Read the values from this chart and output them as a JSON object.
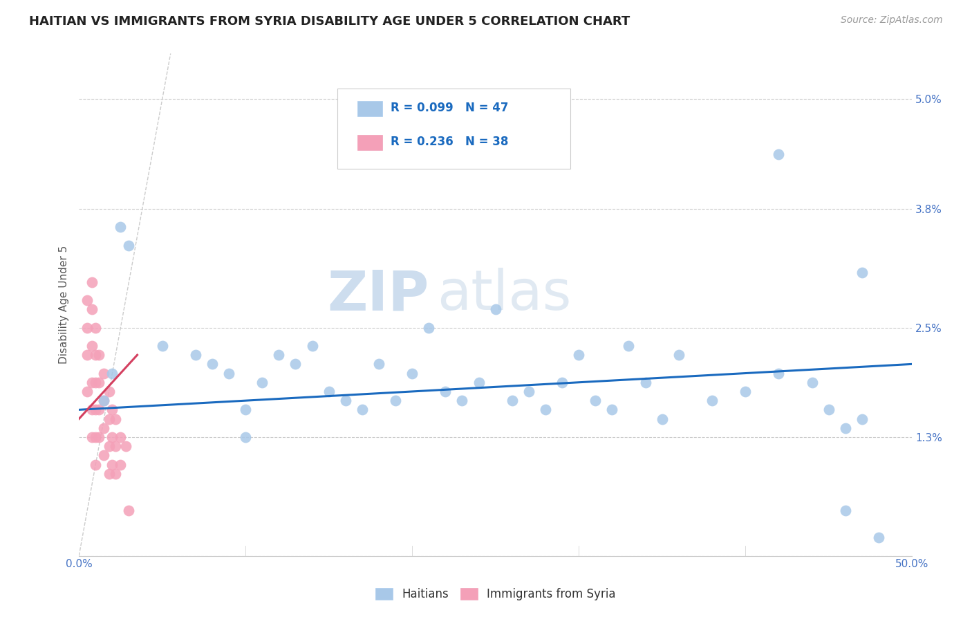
{
  "title": "HAITIAN VS IMMIGRANTS FROM SYRIA DISABILITY AGE UNDER 5 CORRELATION CHART",
  "source": "Source: ZipAtlas.com",
  "ylabel": "Disability Age Under 5",
  "xlim": [
    0.0,
    0.5
  ],
  "ylim": [
    0.0,
    0.055
  ],
  "xticks": [
    0.0,
    0.5
  ],
  "xticklabels": [
    "0.0%",
    "50.0%"
  ],
  "yticks": [
    0.0,
    0.013,
    0.025,
    0.038,
    0.05
  ],
  "yticklabels": [
    "",
    "1.3%",
    "2.5%",
    "3.8%",
    "5.0%"
  ],
  "color_blue": "#a8c8e8",
  "color_pink": "#f4a0b8",
  "color_blue_line": "#1a6abf",
  "color_pink_line": "#d44060",
  "color_diagonal": "#cccccc",
  "watermark_zip": "ZIP",
  "watermark_atlas": "atlas",
  "blue_scatter": [
    [
      0.015,
      0.017
    ],
    [
      0.02,
      0.02
    ],
    [
      0.025,
      0.036
    ],
    [
      0.03,
      0.034
    ],
    [
      0.05,
      0.023
    ],
    [
      0.07,
      0.022
    ],
    [
      0.08,
      0.021
    ],
    [
      0.09,
      0.02
    ],
    [
      0.1,
      0.016
    ],
    [
      0.11,
      0.019
    ],
    [
      0.12,
      0.022
    ],
    [
      0.13,
      0.021
    ],
    [
      0.14,
      0.023
    ],
    [
      0.15,
      0.018
    ],
    [
      0.16,
      0.017
    ],
    [
      0.17,
      0.016
    ],
    [
      0.18,
      0.021
    ],
    [
      0.19,
      0.017
    ],
    [
      0.2,
      0.02
    ],
    [
      0.21,
      0.025
    ],
    [
      0.22,
      0.018
    ],
    [
      0.23,
      0.017
    ],
    [
      0.24,
      0.019
    ],
    [
      0.25,
      0.027
    ],
    [
      0.26,
      0.017
    ],
    [
      0.27,
      0.018
    ],
    [
      0.28,
      0.016
    ],
    [
      0.29,
      0.019
    ],
    [
      0.3,
      0.022
    ],
    [
      0.31,
      0.017
    ],
    [
      0.32,
      0.016
    ],
    [
      0.33,
      0.023
    ],
    [
      0.34,
      0.019
    ],
    [
      0.35,
      0.015
    ],
    [
      0.36,
      0.022
    ],
    [
      0.38,
      0.017
    ],
    [
      0.4,
      0.018
    ],
    [
      0.42,
      0.02
    ],
    [
      0.42,
      0.044
    ],
    [
      0.44,
      0.019
    ],
    [
      0.45,
      0.016
    ],
    [
      0.46,
      0.014
    ],
    [
      0.46,
      0.005
    ],
    [
      0.47,
      0.015
    ],
    [
      0.47,
      0.031
    ],
    [
      0.48,
      0.002
    ],
    [
      0.1,
      0.013
    ]
  ],
  "pink_scatter": [
    [
      0.005,
      0.028
    ],
    [
      0.005,
      0.025
    ],
    [
      0.005,
      0.022
    ],
    [
      0.005,
      0.018
    ],
    [
      0.008,
      0.03
    ],
    [
      0.008,
      0.027
    ],
    [
      0.008,
      0.023
    ],
    [
      0.008,
      0.019
    ],
    [
      0.008,
      0.016
    ],
    [
      0.008,
      0.013
    ],
    [
      0.01,
      0.025
    ],
    [
      0.01,
      0.022
    ],
    [
      0.01,
      0.019
    ],
    [
      0.01,
      0.016
    ],
    [
      0.01,
      0.013
    ],
    [
      0.01,
      0.01
    ],
    [
      0.012,
      0.022
    ],
    [
      0.012,
      0.019
    ],
    [
      0.012,
      0.016
    ],
    [
      0.012,
      0.013
    ],
    [
      0.015,
      0.02
    ],
    [
      0.015,
      0.017
    ],
    [
      0.015,
      0.014
    ],
    [
      0.015,
      0.011
    ],
    [
      0.018,
      0.018
    ],
    [
      0.018,
      0.015
    ],
    [
      0.018,
      0.012
    ],
    [
      0.018,
      0.009
    ],
    [
      0.02,
      0.016
    ],
    [
      0.02,
      0.013
    ],
    [
      0.02,
      0.01
    ],
    [
      0.022,
      0.015
    ],
    [
      0.022,
      0.012
    ],
    [
      0.022,
      0.009
    ],
    [
      0.025,
      0.013
    ],
    [
      0.025,
      0.01
    ],
    [
      0.028,
      0.012
    ],
    [
      0.03,
      0.005
    ]
  ],
  "blue_line_x": [
    0.0,
    0.5
  ],
  "blue_line_y": [
    0.016,
    0.021
  ],
  "pink_line_x": [
    0.0,
    0.035
  ],
  "pink_line_y": [
    0.015,
    0.022
  ]
}
